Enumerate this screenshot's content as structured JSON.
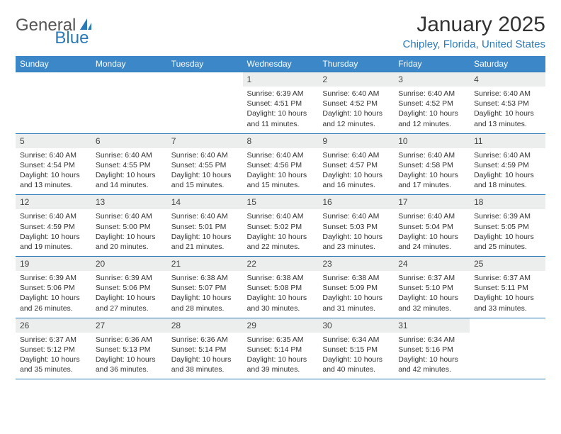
{
  "logo": {
    "text_gray": "General",
    "text_blue": "Blue"
  },
  "title": "January 2025",
  "location": "Chipley, Florida, United States",
  "colors": {
    "header_bg": "#3b87c8",
    "accent": "#2a7ab8",
    "daynum_bg": "#eceded",
    "text": "#333333"
  },
  "day_headers": [
    "Sunday",
    "Monday",
    "Tuesday",
    "Wednesday",
    "Thursday",
    "Friday",
    "Saturday"
  ],
  "weeks": [
    [
      {
        "n": "",
        "info": []
      },
      {
        "n": "",
        "info": []
      },
      {
        "n": "",
        "info": []
      },
      {
        "n": "1",
        "info": [
          "Sunrise: 6:39 AM",
          "Sunset: 4:51 PM",
          "Daylight: 10 hours and 11 minutes."
        ]
      },
      {
        "n": "2",
        "info": [
          "Sunrise: 6:40 AM",
          "Sunset: 4:52 PM",
          "Daylight: 10 hours and 12 minutes."
        ]
      },
      {
        "n": "3",
        "info": [
          "Sunrise: 6:40 AM",
          "Sunset: 4:52 PM",
          "Daylight: 10 hours and 12 minutes."
        ]
      },
      {
        "n": "4",
        "info": [
          "Sunrise: 6:40 AM",
          "Sunset: 4:53 PM",
          "Daylight: 10 hours and 13 minutes."
        ]
      }
    ],
    [
      {
        "n": "5",
        "info": [
          "Sunrise: 6:40 AM",
          "Sunset: 4:54 PM",
          "Daylight: 10 hours and 13 minutes."
        ]
      },
      {
        "n": "6",
        "info": [
          "Sunrise: 6:40 AM",
          "Sunset: 4:55 PM",
          "Daylight: 10 hours and 14 minutes."
        ]
      },
      {
        "n": "7",
        "info": [
          "Sunrise: 6:40 AM",
          "Sunset: 4:55 PM",
          "Daylight: 10 hours and 15 minutes."
        ]
      },
      {
        "n": "8",
        "info": [
          "Sunrise: 6:40 AM",
          "Sunset: 4:56 PM",
          "Daylight: 10 hours and 15 minutes."
        ]
      },
      {
        "n": "9",
        "info": [
          "Sunrise: 6:40 AM",
          "Sunset: 4:57 PM",
          "Daylight: 10 hours and 16 minutes."
        ]
      },
      {
        "n": "10",
        "info": [
          "Sunrise: 6:40 AM",
          "Sunset: 4:58 PM",
          "Daylight: 10 hours and 17 minutes."
        ]
      },
      {
        "n": "11",
        "info": [
          "Sunrise: 6:40 AM",
          "Sunset: 4:59 PM",
          "Daylight: 10 hours and 18 minutes."
        ]
      }
    ],
    [
      {
        "n": "12",
        "info": [
          "Sunrise: 6:40 AM",
          "Sunset: 4:59 PM",
          "Daylight: 10 hours and 19 minutes."
        ]
      },
      {
        "n": "13",
        "info": [
          "Sunrise: 6:40 AM",
          "Sunset: 5:00 PM",
          "Daylight: 10 hours and 20 minutes."
        ]
      },
      {
        "n": "14",
        "info": [
          "Sunrise: 6:40 AM",
          "Sunset: 5:01 PM",
          "Daylight: 10 hours and 21 minutes."
        ]
      },
      {
        "n": "15",
        "info": [
          "Sunrise: 6:40 AM",
          "Sunset: 5:02 PM",
          "Daylight: 10 hours and 22 minutes."
        ]
      },
      {
        "n": "16",
        "info": [
          "Sunrise: 6:40 AM",
          "Sunset: 5:03 PM",
          "Daylight: 10 hours and 23 minutes."
        ]
      },
      {
        "n": "17",
        "info": [
          "Sunrise: 6:40 AM",
          "Sunset: 5:04 PM",
          "Daylight: 10 hours and 24 minutes."
        ]
      },
      {
        "n": "18",
        "info": [
          "Sunrise: 6:39 AM",
          "Sunset: 5:05 PM",
          "Daylight: 10 hours and 25 minutes."
        ]
      }
    ],
    [
      {
        "n": "19",
        "info": [
          "Sunrise: 6:39 AM",
          "Sunset: 5:06 PM",
          "Daylight: 10 hours and 26 minutes."
        ]
      },
      {
        "n": "20",
        "info": [
          "Sunrise: 6:39 AM",
          "Sunset: 5:06 PM",
          "Daylight: 10 hours and 27 minutes."
        ]
      },
      {
        "n": "21",
        "info": [
          "Sunrise: 6:38 AM",
          "Sunset: 5:07 PM",
          "Daylight: 10 hours and 28 minutes."
        ]
      },
      {
        "n": "22",
        "info": [
          "Sunrise: 6:38 AM",
          "Sunset: 5:08 PM",
          "Daylight: 10 hours and 30 minutes."
        ]
      },
      {
        "n": "23",
        "info": [
          "Sunrise: 6:38 AM",
          "Sunset: 5:09 PM",
          "Daylight: 10 hours and 31 minutes."
        ]
      },
      {
        "n": "24",
        "info": [
          "Sunrise: 6:37 AM",
          "Sunset: 5:10 PM",
          "Daylight: 10 hours and 32 minutes."
        ]
      },
      {
        "n": "25",
        "info": [
          "Sunrise: 6:37 AM",
          "Sunset: 5:11 PM",
          "Daylight: 10 hours and 33 minutes."
        ]
      }
    ],
    [
      {
        "n": "26",
        "info": [
          "Sunrise: 6:37 AM",
          "Sunset: 5:12 PM",
          "Daylight: 10 hours and 35 minutes."
        ]
      },
      {
        "n": "27",
        "info": [
          "Sunrise: 6:36 AM",
          "Sunset: 5:13 PM",
          "Daylight: 10 hours and 36 minutes."
        ]
      },
      {
        "n": "28",
        "info": [
          "Sunrise: 6:36 AM",
          "Sunset: 5:14 PM",
          "Daylight: 10 hours and 38 minutes."
        ]
      },
      {
        "n": "29",
        "info": [
          "Sunrise: 6:35 AM",
          "Sunset: 5:14 PM",
          "Daylight: 10 hours and 39 minutes."
        ]
      },
      {
        "n": "30",
        "info": [
          "Sunrise: 6:34 AM",
          "Sunset: 5:15 PM",
          "Daylight: 10 hours and 40 minutes."
        ]
      },
      {
        "n": "31",
        "info": [
          "Sunrise: 6:34 AM",
          "Sunset: 5:16 PM",
          "Daylight: 10 hours and 42 minutes."
        ]
      },
      {
        "n": "",
        "info": []
      }
    ]
  ]
}
